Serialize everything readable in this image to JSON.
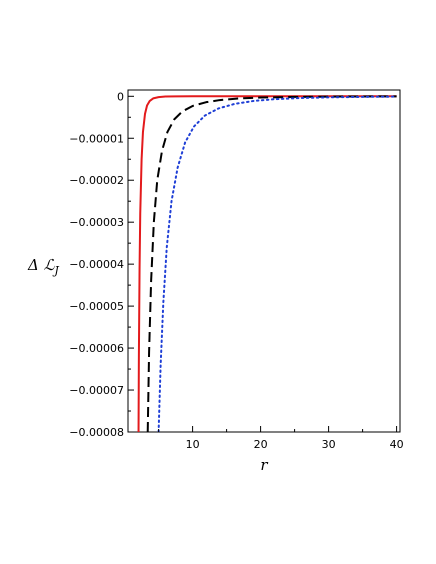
{
  "chart_data": {
    "type": "line",
    "xlabel": "r",
    "ylabel": "ΔℒJ",
    "ylabel_main": "Δ ℒ",
    "ylabel_sub": "J",
    "xlim": [
      0.5,
      40.5
    ],
    "ylim": [
      -8e-05,
      1.5e-06
    ],
    "x_ticks": [
      10,
      20,
      30,
      40
    ],
    "x_tick_labels": [
      "10",
      "20",
      "30",
      "40"
    ],
    "y_ticks": [
      0,
      -1e-05,
      -2e-05,
      -3e-05,
      -4e-05,
      -5e-05,
      -6e-05,
      -7e-05,
      -8e-05
    ],
    "y_tick_labels": [
      "0",
      "−0.00001",
      "−0.00002",
      "−0.00003",
      "−0.00004",
      "−0.00005",
      "−0.00006",
      "−0.00007",
      "−0.00008"
    ],
    "grid": false,
    "series": [
      {
        "style": "solid",
        "color": "#e31a1c",
        "x": [
          2.05,
          2.1,
          2.2,
          2.3,
          2.5,
          2.7,
          3.0,
          3.3,
          3.7,
          4.2,
          5.0,
          6.0,
          7.5,
          10,
          15,
          20,
          30,
          40
        ],
        "y": [
          -8e-05,
          -6.2e-05,
          -4.1e-05,
          -2.8e-05,
          -1.5e-05,
          -8.5e-06,
          -4.2e-06,
          -2.2e-06,
          -1.1e-06,
          -5e-07,
          -2e-07,
          -6e-08,
          -2e-08,
          0,
          0,
          0,
          0,
          0
        ]
      },
      {
        "style": "dashed",
        "color": "#000000",
        "x": [
          3.4,
          3.6,
          3.9,
          4.3,
          4.8,
          5.5,
          6.3,
          7.3,
          8.5,
          10,
          12,
          14,
          17,
          20,
          25,
          30,
          35,
          40
        ],
        "y": [
          -8e-05,
          -6.1e-05,
          -4.4e-05,
          -3e-05,
          -2e-05,
          -1.3e-05,
          -8.5e-06,
          -5.5e-06,
          -3.6e-06,
          -2.3e-06,
          -1.4e-06,
          -9e-07,
          -5e-07,
          -3e-07,
          -1.5e-07,
          -8e-08,
          -4e-08,
          -2e-08
        ]
      },
      {
        "style": "dotted",
        "color": "#1f3fd6",
        "x": [
          5.0,
          5.3,
          5.7,
          6.2,
          6.9,
          7.8,
          8.9,
          10.2,
          11.8,
          13.8,
          16.2,
          19,
          22,
          26,
          30,
          35,
          40
        ],
        "y": [
          -8e-05,
          -6.4e-05,
          -4.9e-05,
          -3.6e-05,
          -2.5e-05,
          -1.7e-05,
          -1.1e-05,
          -7.2e-06,
          -4.6e-06,
          -2.9e-06,
          -1.8e-06,
          -1.1e-06,
          -7e-07,
          -4e-07,
          -2.5e-07,
          -1.4e-07,
          -8e-08
        ]
      }
    ]
  }
}
